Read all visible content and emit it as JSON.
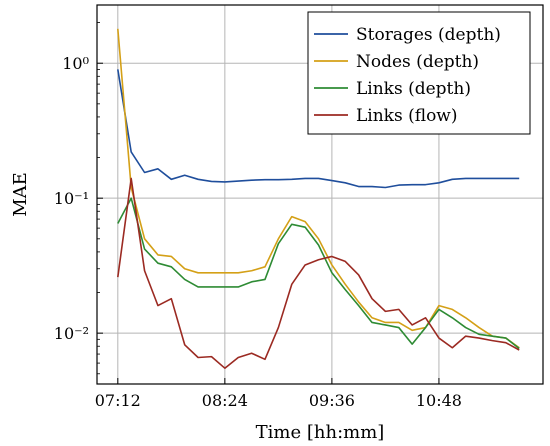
{
  "chart_data": {
    "type": "line",
    "xlabel": "Time [hh:mm]",
    "ylabel": "MAE",
    "yscale": "log",
    "ylim": [
      0.0042,
      2.7
    ],
    "xlim": [
      "06:58",
      "11:58"
    ],
    "x_ticks": [
      "07:12",
      "08:24",
      "09:36",
      "10:48"
    ],
    "y_ticks": [
      {
        "value": 0.01,
        "label": "10⁻²"
      },
      {
        "value": 0.1,
        "label": "10⁻¹"
      },
      {
        "value": 1,
        "label": "10⁰"
      }
    ],
    "grid": true,
    "legend_position": "top-right",
    "x": [
      "07:12",
      "07:21",
      "07:30",
      "07:39",
      "07:48",
      "07:57",
      "08:06",
      "08:15",
      "08:24",
      "08:33",
      "08:42",
      "08:51",
      "09:00",
      "09:09",
      "09:18",
      "09:27",
      "09:36",
      "09:45",
      "09:54",
      "10:03",
      "10:12",
      "10:21",
      "10:30",
      "10:39",
      "10:48",
      "10:57",
      "11:06",
      "11:15",
      "11:24",
      "11:33",
      "11:42"
    ],
    "series": [
      {
        "name": "Storages (depth)",
        "color": "#1f4e9c",
        "values": [
          0.9,
          0.22,
          0.155,
          0.165,
          0.138,
          0.148,
          0.138,
          0.133,
          0.132,
          0.134,
          0.136,
          0.137,
          0.137,
          0.138,
          0.14,
          0.14,
          0.135,
          0.13,
          0.122,
          0.122,
          0.12,
          0.125,
          0.126,
          0.126,
          0.13,
          0.138,
          0.14,
          0.14,
          0.14,
          0.14,
          0.14
        ]
      },
      {
        "name": "Nodes (depth)",
        "color": "#d4a017",
        "values": [
          1.8,
          0.12,
          0.05,
          0.038,
          0.037,
          0.03,
          0.028,
          0.028,
          0.028,
          0.028,
          0.029,
          0.031,
          0.05,
          0.073,
          0.067,
          0.05,
          0.032,
          0.023,
          0.017,
          0.013,
          0.012,
          0.012,
          0.0105,
          0.011,
          0.016,
          0.015,
          0.013,
          0.011,
          0.0095,
          0.0092,
          0.0078
        ]
      },
      {
        "name": "Links (depth)",
        "color": "#2e8b34",
        "values": [
          0.065,
          0.1,
          0.042,
          0.033,
          0.031,
          0.025,
          0.022,
          0.022,
          0.022,
          0.022,
          0.024,
          0.025,
          0.046,
          0.064,
          0.061,
          0.045,
          0.028,
          0.021,
          0.016,
          0.012,
          0.0115,
          0.011,
          0.0083,
          0.011,
          0.015,
          0.013,
          0.011,
          0.0098,
          0.0095,
          0.0092,
          0.0077
        ]
      },
      {
        "name": "Links (flow)",
        "color": "#9b2a22",
        "values": [
          0.026,
          0.14,
          0.029,
          0.016,
          0.018,
          0.0082,
          0.0066,
          0.0067,
          0.0055,
          0.0066,
          0.0071,
          0.0064,
          0.011,
          0.023,
          0.032,
          0.035,
          0.037,
          0.034,
          0.027,
          0.018,
          0.0145,
          0.015,
          0.0115,
          0.013,
          0.0092,
          0.0078,
          0.0095,
          0.0092,
          0.0088,
          0.0085,
          0.0075
        ]
      }
    ]
  }
}
